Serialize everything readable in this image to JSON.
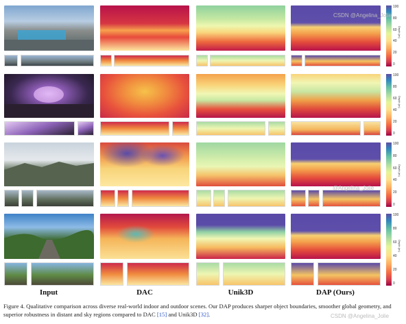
{
  "columns": [
    "Input",
    "DAC",
    "Unik3D",
    "DAP (Ours)"
  ],
  "colorbar": {
    "ticks": [
      "100",
      "80",
      "60",
      "40",
      "20",
      "0"
    ],
    "label": "Depth (m)"
  },
  "caption": {
    "prefix": "Figure 4.  Qualitative comparison across diverse real-world indoor and outdoor scenes.  Our DAP produces sharper object boundaries, smoother global geometry, and superior robustness in distant and sky regions compared to DAC ",
    "ref1": "[15]",
    "middle": " and Unik3D ",
    "ref2": "[32]",
    "suffix": "."
  },
  "watermarks": [
    "CSDN @Angelina_Jolie",
    "@Angelina_Jolie"
  ]
}
